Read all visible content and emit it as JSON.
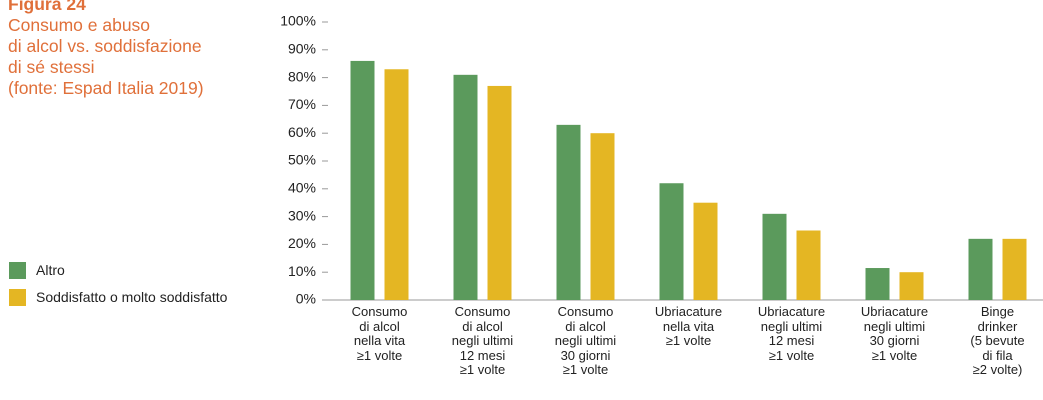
{
  "chart_data": {
    "type": "bar",
    "title": "Figura 24",
    "subtitle": [
      "Consumo e abuso",
      "di alcol vs. soddisfazione",
      "di sé stessi",
      "(fonte: Espad Italia 2019)"
    ],
    "categories": [
      "Consumo\ndi alcol\nnella vita\n≥1 volte",
      "Consumo\ndi alcol\nnegli ultimi\n12 mesi\n≥1 volte",
      "Consumo\ndi alcol\nnegli ultimi\n30 giorni\n≥1 volte",
      "Ubriacature\nnella vita\n≥1 volte",
      "Ubriacature\nnegli ultimi\n12 mesi\n≥1 volte",
      "Ubriacature\nnegli ultimi\n30 giorni\n≥1 volte",
      "Binge\ndrinker\n(5 bevute\ndi fila\n≥2 volte)"
    ],
    "series": [
      {
        "name": "Altro",
        "color": "#5b9a5c",
        "values": [
          86,
          81,
          63,
          42,
          31,
          11.5,
          22
        ]
      },
      {
        "name": "Soddisfatto o molto soddisfatto",
        "color": "#e4b623",
        "values": [
          83,
          77,
          60,
          35,
          25,
          10,
          22
        ]
      }
    ],
    "ylim": [
      0,
      100
    ],
    "yticks": [
      {
        "value": 0,
        "label": "0%"
      },
      {
        "value": 10,
        "label": "10%"
      },
      {
        "value": 20,
        "label": "20%"
      },
      {
        "value": 30,
        "label": "30%"
      },
      {
        "value": 40,
        "label": "40%"
      },
      {
        "value": 50,
        "label": "50%"
      },
      {
        "value": 60,
        "label": "60%"
      },
      {
        "value": 70,
        "label": "70%"
      },
      {
        "value": 80,
        "label": "80%"
      },
      {
        "value": 90,
        "label": "90%"
      },
      {
        "value": 100,
        "label": "100%"
      }
    ],
    "legend": "left"
  }
}
